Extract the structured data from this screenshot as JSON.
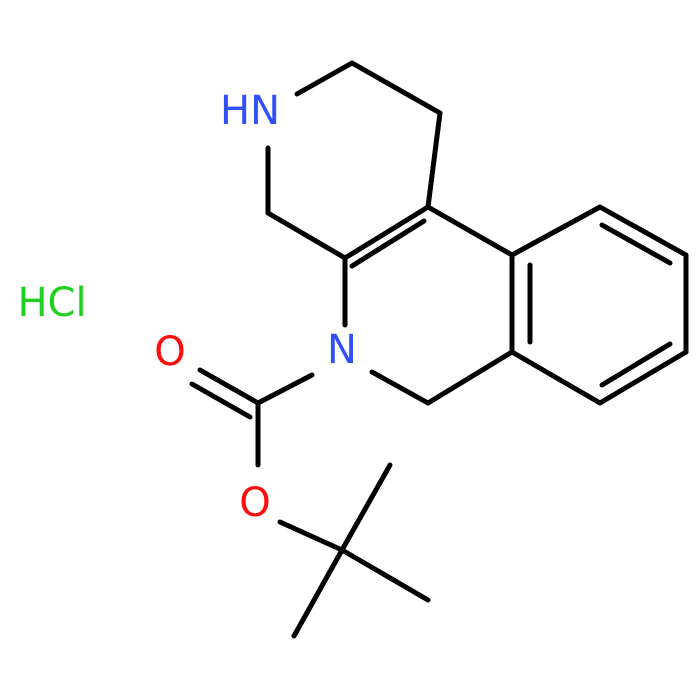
{
  "atoms": [
    {
      "label": "HN",
      "color": "#3050f8"
    },
    {
      "label": "N",
      "color": "#3050f8"
    },
    {
      "label": "O",
      "color": "#ff0d0d"
    },
    {
      "label": "O",
      "color": "#ff0d0d"
    }
  ],
  "salt": {
    "label": "HCl",
    "color": "#1fd01f"
  }
}
